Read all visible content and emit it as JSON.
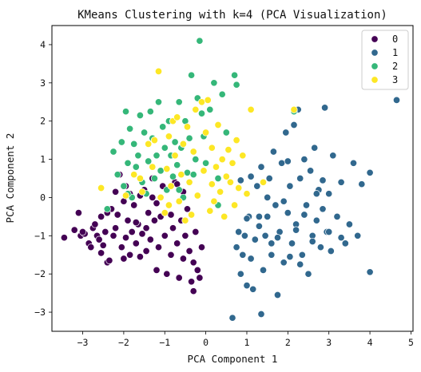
{
  "chart_data": {
    "type": "scatter",
    "title": "KMeans Clustering with k=4 (PCA Visualization)",
    "xlabel": "PCA Component 1",
    "ylabel": "PCA Component 2",
    "xlim": [
      -3.75,
      5.05
    ],
    "ylim": [
      -3.5,
      4.5
    ],
    "xticks": [
      -3,
      -2,
      -1,
      0,
      1,
      2,
      3,
      4,
      5
    ],
    "yticks": [
      -3,
      -2,
      -1,
      0,
      1,
      2,
      3,
      4
    ],
    "grid": false,
    "legend": {
      "placement": "top-right",
      "entries": [
        "0",
        "1",
        "2",
        "3"
      ]
    },
    "colors": {
      "0": "#440154",
      "1": "#31688e",
      "2": "#35b779",
      "3": "#fde725"
    },
    "series": [
      {
        "name": "0",
        "points": [
          [
            -3.45,
            -1.05
          ],
          [
            -3.2,
            -0.85
          ],
          [
            -3.1,
            -0.4
          ],
          [
            -3.05,
            -1.0
          ],
          [
            -2.95,
            -0.95
          ],
          [
            -2.85,
            -1.2
          ],
          [
            -2.8,
            -1.3
          ],
          [
            -2.75,
            -0.8
          ],
          [
            -2.7,
            -0.7
          ],
          [
            -2.65,
            -1.0
          ],
          [
            -2.6,
            -1.1
          ],
          [
            -2.55,
            -0.5
          ],
          [
            -2.5,
            -1.25
          ],
          [
            -2.45,
            -0.9
          ],
          [
            -2.4,
            -1.7
          ],
          [
            -2.35,
            -1.65
          ],
          [
            -2.3,
            -0.3
          ],
          [
            -2.25,
            -1.0
          ],
          [
            -2.2,
            -0.8
          ],
          [
            -2.15,
            -0.45
          ],
          [
            -2.1,
            0.6
          ],
          [
            -2.05,
            -1.3
          ],
          [
            -2.0,
            -0.1
          ],
          [
            -1.95,
            -1.05
          ],
          [
            -1.9,
            -0.6
          ],
          [
            -1.85,
            -1.5
          ],
          [
            -1.8,
            -0.9
          ],
          [
            -1.75,
            -0.2
          ],
          [
            -1.7,
            -1.2
          ],
          [
            -1.65,
            -0.7
          ],
          [
            -1.6,
            -1.55
          ],
          [
            -1.55,
            -0.95
          ],
          [
            -1.5,
            0.2
          ],
          [
            -1.45,
            -1.4
          ],
          [
            -1.4,
            -0.4
          ],
          [
            -1.35,
            -1.1
          ],
          [
            -1.3,
            0.5
          ],
          [
            -1.25,
            -0.6
          ],
          [
            -1.2,
            -1.9
          ],
          [
            -1.15,
            -1.3
          ],
          [
            -1.1,
            -0.5
          ],
          [
            -1.05,
            0.3
          ],
          [
            -1.0,
            -1.0
          ],
          [
            -0.95,
            -2.0
          ],
          [
            -0.9,
            -0.2
          ],
          [
            -0.85,
            -1.5
          ],
          [
            -0.8,
            -0.8
          ],
          [
            -0.75,
            0.4
          ],
          [
            -0.7,
            -1.2
          ],
          [
            -0.65,
            -2.1
          ],
          [
            -0.6,
            -0.6
          ],
          [
            -0.55,
            -1.6
          ],
          [
            -0.5,
            -1.0
          ],
          [
            -0.45,
            -0.3
          ],
          [
            -0.4,
            -1.4
          ],
          [
            -0.35,
            -2.2
          ],
          [
            -0.3,
            -1.7
          ],
          [
            -0.25,
            -0.9
          ],
          [
            -0.2,
            -1.9
          ],
          [
            -0.15,
            -2.1
          ],
          [
            -0.1,
            -1.3
          ],
          [
            -1.85,
            0.1
          ],
          [
            -2.4,
            -0.4
          ],
          [
            -1.7,
            -0.65
          ],
          [
            -0.85,
            -0.45
          ],
          [
            -1.2,
            -0.15
          ],
          [
            -2.0,
            -1.6
          ],
          [
            -1.45,
            -0.8
          ],
          [
            -0.3,
            -2.45
          ],
          [
            -2.55,
            -1.45
          ],
          [
            -1.95,
            0.3
          ],
          [
            -1.6,
            0.05
          ],
          [
            -0.55,
            0.15
          ],
          [
            -2.2,
            0.15
          ],
          [
            -3.0,
            -0.9
          ],
          [
            -1.3,
            0.0
          ],
          [
            -0.7,
            0.35
          ]
        ]
      },
      {
        "name": "1",
        "points": [
          [
            0.65,
            -3.15
          ],
          [
            0.75,
            -1.3
          ],
          [
            0.8,
            -0.9
          ],
          [
            0.85,
            -2.0
          ],
          [
            0.9,
            -1.5
          ],
          [
            0.95,
            -1.0
          ],
          [
            1.0,
            -2.3
          ],
          [
            1.05,
            -0.5
          ],
          [
            1.1,
            -1.6
          ],
          [
            1.15,
            -2.4
          ],
          [
            1.2,
            -1.1
          ],
          [
            1.25,
            0.3
          ],
          [
            1.3,
            -0.5
          ],
          [
            1.35,
            0.8
          ],
          [
            1.4,
            -1.9
          ],
          [
            1.45,
            -1.0
          ],
          [
            1.5,
            -0.5
          ],
          [
            1.55,
            0.5
          ],
          [
            1.6,
            -1.5
          ],
          [
            1.65,
            1.2
          ],
          [
            1.7,
            -0.2
          ],
          [
            1.75,
            -2.55
          ],
          [
            1.8,
            -0.9
          ],
          [
            1.85,
            0.9
          ],
          [
            1.9,
            -1.7
          ],
          [
            1.95,
            1.7
          ],
          [
            2.0,
            -0.4
          ],
          [
            2.05,
            0.3
          ],
          [
            2.1,
            -1.2
          ],
          [
            2.15,
            1.9
          ],
          [
            2.2,
            -0.7
          ],
          [
            2.25,
            2.3
          ],
          [
            2.3,
            0.5
          ],
          [
            2.35,
            -1.5
          ],
          [
            2.4,
            1.0
          ],
          [
            2.45,
            -0.2
          ],
          [
            2.5,
            -2.0
          ],
          [
            2.55,
            0.7
          ],
          [
            2.6,
            -1.0
          ],
          [
            2.65,
            1.3
          ],
          [
            2.7,
            -0.6
          ],
          [
            2.75,
            0.2
          ],
          [
            2.8,
            -1.3
          ],
          [
            2.85,
            -0.3
          ],
          [
            2.9,
            2.35
          ],
          [
            2.95,
            -0.9
          ],
          [
            3.0,
            0.1
          ],
          [
            3.05,
            -1.4
          ],
          [
            3.1,
            1.1
          ],
          [
            3.2,
            -0.5
          ],
          [
            3.3,
            0.4
          ],
          [
            3.4,
            -1.2
          ],
          [
            3.5,
            -0.7
          ],
          [
            3.6,
            0.9
          ],
          [
            3.7,
            -1.0
          ],
          [
            3.8,
            0.35
          ],
          [
            4.0,
            0.65
          ],
          [
            4.0,
            -1.95
          ],
          [
            4.65,
            2.55
          ],
          [
            1.35,
            -3.05
          ],
          [
            0.85,
            0.45
          ],
          [
            1.1,
            0.55
          ],
          [
            1.5,
            0.0
          ],
          [
            1.9,
            -0.1
          ],
          [
            2.2,
            -0.85
          ],
          [
            2.6,
            -1.15
          ],
          [
            2.3,
            -1.75
          ],
          [
            1.6,
            -1.2
          ],
          [
            2.0,
            0.95
          ],
          [
            1.3,
            -0.75
          ],
          [
            2.05,
            -1.55
          ],
          [
            2.7,
            0.1
          ],
          [
            3.0,
            -0.9
          ],
          [
            1.75,
            -1.05
          ],
          [
            2.4,
            -0.45
          ],
          [
            3.3,
            -1.05
          ],
          [
            1.0,
            -0.55
          ],
          [
            2.85,
            0.45
          ]
        ]
      },
      {
        "name": "2",
        "points": [
          [
            -2.4,
            -0.3
          ],
          [
            -2.25,
            1.2
          ],
          [
            -2.15,
            0.6
          ],
          [
            -2.05,
            1.45
          ],
          [
            -2.0,
            0.3
          ],
          [
            -1.95,
            2.25
          ],
          [
            -1.9,
            0.9
          ],
          [
            -1.85,
            1.8
          ],
          [
            -1.8,
            0.0
          ],
          [
            -1.75,
            1.4
          ],
          [
            -1.7,
            0.8
          ],
          [
            -1.65,
            1.1
          ],
          [
            -1.6,
            2.15
          ],
          [
            -1.55,
            0.4
          ],
          [
            -1.5,
            1.7
          ],
          [
            -1.45,
            0.1
          ],
          [
            -1.4,
            0.95
          ],
          [
            -1.35,
            2.25
          ],
          [
            -1.3,
            1.55
          ],
          [
            -1.25,
            0.5
          ],
          [
            -1.2,
            1.1
          ],
          [
            -1.15,
            2.5
          ],
          [
            -1.1,
            0.7
          ],
          [
            -1.05,
            1.85
          ],
          [
            -1.0,
            1.3
          ],
          [
            -0.95,
            0.2
          ],
          [
            -0.9,
            2.0
          ],
          [
            -0.85,
            1.1
          ],
          [
            -0.8,
            0.55
          ],
          [
            -0.75,
            1.45
          ],
          [
            -0.7,
            0.85
          ],
          [
            -0.65,
            2.5
          ],
          [
            -0.6,
            1.3
          ],
          [
            -0.55,
            0.0
          ],
          [
            -0.5,
            2.0
          ],
          [
            -0.45,
            0.65
          ],
          [
            -0.4,
            1.55
          ],
          [
            -0.35,
            3.2
          ],
          [
            -0.3,
            0.6
          ],
          [
            -0.25,
            1.0
          ],
          [
            -0.2,
            2.6
          ],
          [
            -0.15,
            4.1
          ],
          [
            -0.1,
            2.2
          ],
          [
            -0.05,
            1.6
          ],
          [
            0.0,
            0.9
          ],
          [
            0.1,
            2.3
          ],
          [
            0.2,
            3.0
          ],
          [
            0.3,
            0.5
          ],
          [
            0.4,
            2.7
          ],
          [
            0.5,
            1.7
          ],
          [
            0.7,
            3.2
          ],
          [
            0.75,
            2.95
          ],
          [
            2.15,
            2.25
          ],
          [
            0.3,
            -0.2
          ],
          [
            -1.9,
            0.1
          ],
          [
            -0.65,
            0.2
          ]
        ]
      },
      {
        "name": "3",
        "points": [
          [
            -2.55,
            0.25
          ],
          [
            -1.95,
            0.05
          ],
          [
            -1.75,
            0.6
          ],
          [
            -1.55,
            0.15
          ],
          [
            -1.4,
            1.4
          ],
          [
            -1.3,
            0.8
          ],
          [
            -1.25,
            1.5
          ],
          [
            -1.15,
            3.3
          ],
          [
            -1.1,
            0.0
          ],
          [
            -1.0,
            -0.4
          ],
          [
            -0.95,
            0.75
          ],
          [
            -0.9,
            1.6
          ],
          [
            -0.85,
            0.3
          ],
          [
            -0.8,
            2.0
          ],
          [
            -0.75,
            1.1
          ],
          [
            -0.7,
            2.1
          ],
          [
            -0.65,
            -0.1
          ],
          [
            -0.6,
            0.6
          ],
          [
            -0.55,
            1.4
          ],
          [
            -0.5,
            -0.6
          ],
          [
            -0.45,
            1.85
          ],
          [
            -0.4,
            0.4
          ],
          [
            -0.35,
            -0.45
          ],
          [
            -0.3,
            1.2
          ],
          [
            -0.25,
            2.3
          ],
          [
            -0.2,
            0.05
          ],
          [
            -0.1,
            2.5
          ],
          [
            -0.05,
            0.7
          ],
          [
            0.0,
            1.7
          ],
          [
            0.05,
            2.55
          ],
          [
            0.1,
            -0.35
          ],
          [
            0.15,
            1.3
          ],
          [
            0.2,
            -0.1
          ],
          [
            0.25,
            0.8
          ],
          [
            0.3,
            1.9
          ],
          [
            0.35,
            0.15
          ],
          [
            0.4,
            1.0
          ],
          [
            0.45,
            -0.5
          ],
          [
            0.5,
            0.55
          ],
          [
            0.55,
            1.25
          ],
          [
            0.6,
            0.4
          ],
          [
            0.65,
            0.9
          ],
          [
            0.7,
            -0.2
          ],
          [
            0.75,
            1.5
          ],
          [
            0.8,
            0.25
          ],
          [
            0.9,
            1.1
          ],
          [
            1.0,
            0.1
          ],
          [
            1.1,
            2.3
          ],
          [
            1.4,
            0.4
          ],
          [
            2.15,
            2.3
          ],
          [
            -1.6,
            0.5
          ],
          [
            -0.9,
            -0.2
          ],
          [
            0.15,
            0.35
          ]
        ]
      }
    ]
  }
}
